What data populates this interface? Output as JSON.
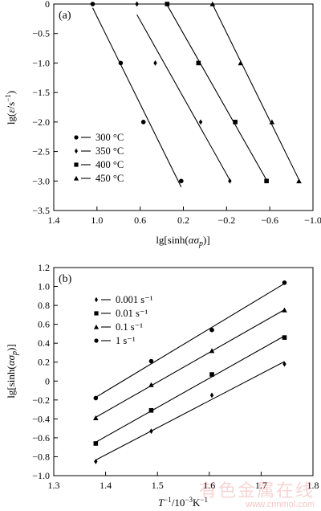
{
  "chart_data": [
    {
      "type": "scatter",
      "panel_label": "(a)",
      "xlabel": "lg[sinh(ασp)]",
      "ylabel": "lg(ε̇/s⁻¹)",
      "xlim": [
        1.4,
        -1.0
      ],
      "ylim": [
        -3.5,
        0
      ],
      "xticks": [
        "1.4",
        "1.0",
        "0.6",
        "0.2",
        "−0.2",
        "−0.6",
        "−1.0"
      ],
      "yticks": [
        "0",
        "−0.5",
        "−1.0",
        "−1.5",
        "−2.0",
        "−2.5",
        "−3.0",
        "−3.5"
      ],
      "legend_position": "lower-left",
      "series": [
        {
          "name": "300 °C",
          "marker": "circle",
          "x": [
            1.04,
            0.78,
            0.57,
            0.22
          ],
          "y": [
            0,
            -1.0,
            -2.0,
            -3.0
          ]
        },
        {
          "name": "350 °C",
          "marker": "diamond",
          "x": [
            0.63,
            0.46,
            0.04,
            -0.23
          ],
          "y": [
            0,
            -1.0,
            -2.0,
            -3.0
          ]
        },
        {
          "name": "400 °C",
          "marker": "square",
          "x": [
            0.35,
            0.06,
            -0.28,
            -0.57
          ],
          "y": [
            0,
            -1.0,
            -2.0,
            -3.0
          ]
        },
        {
          "name": "450 °C",
          "marker": "triangle",
          "x": [
            -0.07,
            -0.33,
            -0.62,
            -0.87
          ],
          "y": [
            0,
            -1.0,
            -2.0,
            -3.0
          ]
        }
      ]
    },
    {
      "type": "scatter",
      "panel_label": "(b)",
      "xlabel": "T⁻¹/10⁻³K⁻¹",
      "ylabel": "lg[sinh(ασp)]",
      "xlim": [
        1.3,
        1.8
      ],
      "ylim": [
        -1.0,
        1.2
      ],
      "xticks": [
        "1.3",
        "1.4",
        "1.5",
        "1.6",
        "1.7",
        "1.8"
      ],
      "yticks": [
        "1.2",
        "1.0",
        "0.8",
        "0.6",
        "0.4",
        "0.2",
        "0",
        "−0.2",
        "−0.4",
        "−0.6",
        "−0.8",
        "−1.0"
      ],
      "legend_position": "top-left",
      "series": [
        {
          "name": "0.001 s⁻¹",
          "marker": "diamond",
          "x": [
            1.381,
            1.488,
            1.605,
            1.745
          ],
          "y": [
            -0.85,
            -0.53,
            -0.15,
            0.18
          ]
        },
        {
          "name": "0.01 s⁻¹",
          "marker": "square",
          "x": [
            1.381,
            1.488,
            1.605,
            1.745
          ],
          "y": [
            -0.66,
            -0.31,
            0.07,
            0.46
          ]
        },
        {
          "name": "0.1 s⁻¹",
          "marker": "triangle",
          "x": [
            1.381,
            1.488,
            1.605,
            1.745
          ],
          "y": [
            -0.39,
            -0.04,
            0.32,
            0.75
          ]
        },
        {
          "name": "1 s⁻¹",
          "marker": "circle",
          "x": [
            1.381,
            1.488,
            1.605,
            1.745
          ],
          "y": [
            -0.18,
            0.21,
            0.54,
            1.04
          ]
        }
      ]
    }
  ],
  "watermark": {
    "cn": "有色金属在线",
    "url": "www.cnnmol.com"
  },
  "colors": {
    "ink": "#000000",
    "watermark": "#dc3c3c"
  }
}
